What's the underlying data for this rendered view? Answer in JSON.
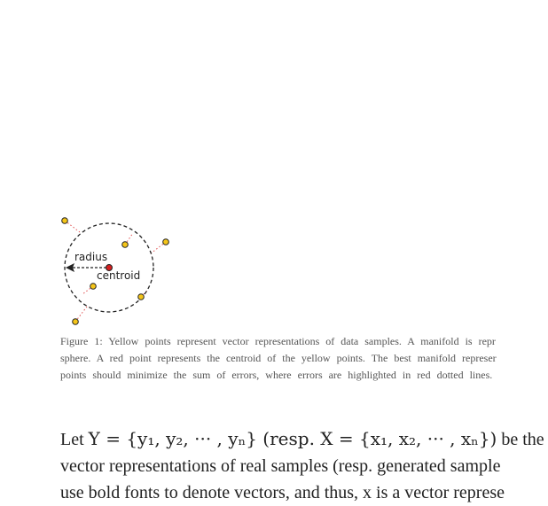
{
  "figure": {
    "radius_label": "radius",
    "centroid_label": "centroid",
    "colors": {
      "yellow_point": "#f5c518",
      "centroid_point": "#d62020",
      "error_line": "#e05050",
      "circle": "#222222"
    }
  },
  "caption": {
    "line1": "Figure 1: Yellow points represent vector representations of data samples. A manifold is repr",
    "line2": "sphere. A red point represents the centroid of the yellow points. The best manifold represer",
    "line3": "points should minimize the sum of errors, where errors are highlighted in red dotted lines."
  },
  "body": {
    "line1": {
      "prefix": "Let ",
      "set_y": "Y = {y₁, y₂, ··· , yₙ}",
      "resp_x": " (resp. X = {x₁, x₂, ··· , xₙ})",
      "suffix": " be the"
    },
    "line2": "vector representations of real samples (resp. generated sample",
    "line3": "use bold fonts to denote vectors, and thus, x is a vector represe"
  }
}
